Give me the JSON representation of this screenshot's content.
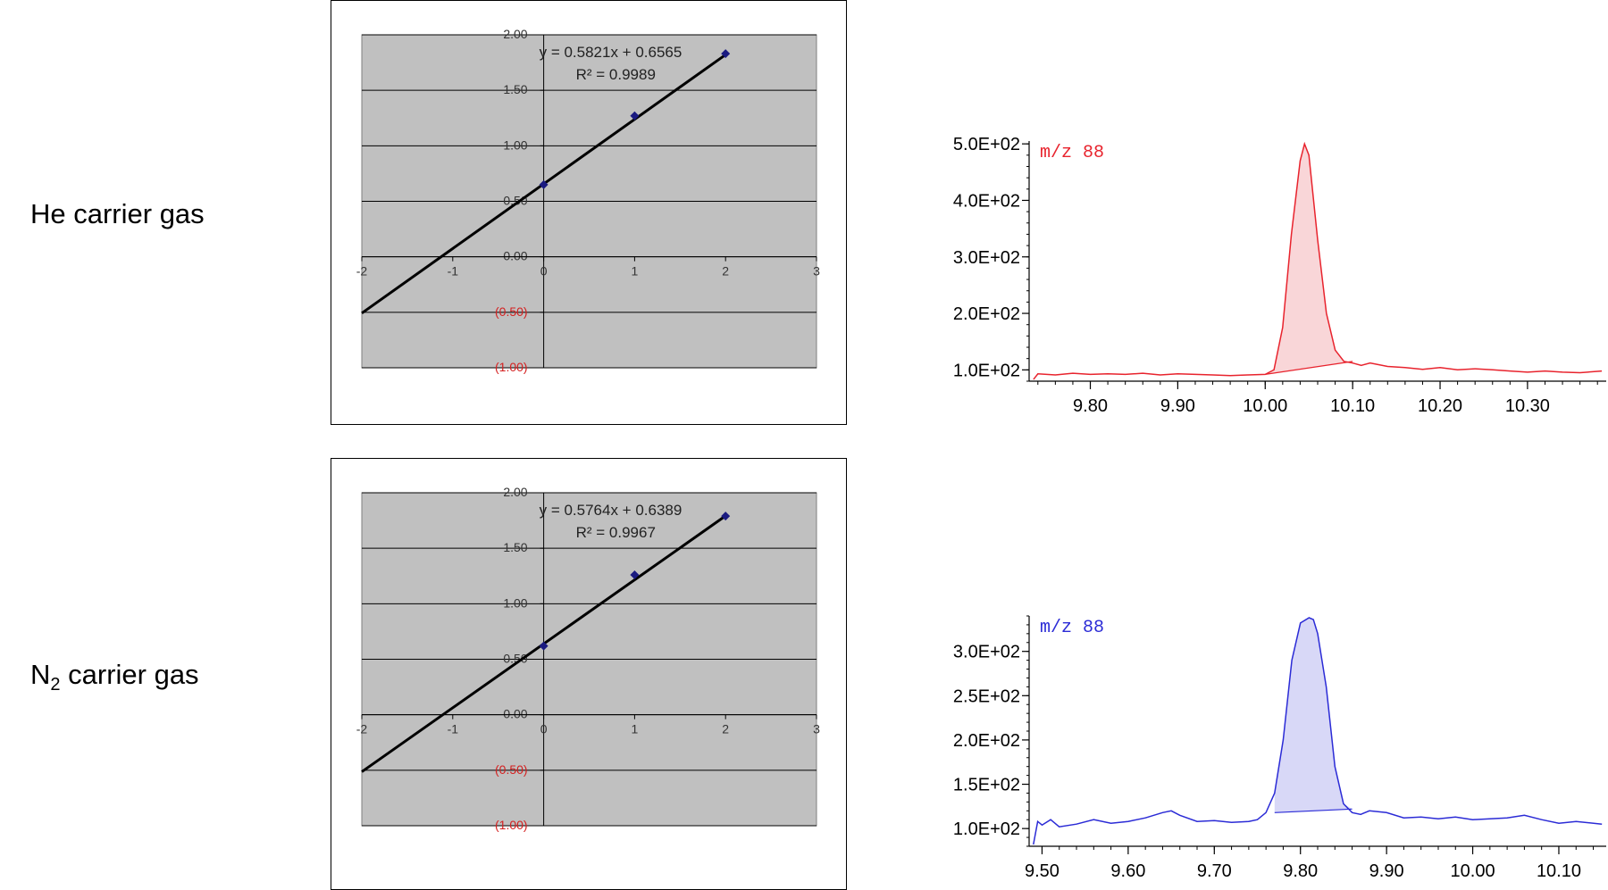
{
  "row_labels": [
    {
      "prefix": "He carrier gas",
      "sub": "",
      "suffix": ""
    },
    {
      "prefix": "N",
      "sub": "2",
      "suffix": " carrier gas"
    }
  ],
  "chart_data": [
    {
      "type": "scatter",
      "title": "",
      "xlim": [
        -2,
        3
      ],
      "ylim": [
        -1.0,
        2.0
      ],
      "xticks": [
        -2,
        -1,
        0,
        1,
        2,
        3
      ],
      "yticks": [
        2.0,
        1.5,
        1.0,
        0.5,
        0.0,
        -0.5,
        -1.0
      ],
      "ytick_labels": [
        "2.00",
        "1.50",
        "1.00",
        "0.50",
        "0.00",
        "(0.50)",
        "(1.00)"
      ],
      "grid": true,
      "points": {
        "x": [
          0,
          1,
          2
        ],
        "y": [
          0.65,
          1.27,
          1.83
        ]
      },
      "trendline": {
        "slope": 0.5821,
        "intercept": 0.6565,
        "x_range": [
          -2,
          2
        ]
      },
      "equation": "y = 0.5821x + 0.6565",
      "r2": "R² = 0.9989"
    },
    {
      "type": "line",
      "title": "",
      "label": "m/z 88",
      "color": "#e8232d",
      "fill": "#f9d6d8",
      "xlim": [
        9.73,
        10.39
      ],
      "ylim": [
        80,
        505
      ],
      "xticks": [
        9.8,
        9.9,
        10.0,
        10.1,
        10.2,
        10.3
      ],
      "xtick_labels": [
        "9.80",
        "9.90",
        "10.00",
        "10.10",
        "10.20",
        "10.30"
      ],
      "yticks": [
        100,
        200,
        300,
        400,
        500
      ],
      "ytick_labels": [
        "1.0E+02",
        "2.0E+02",
        "3.0E+02",
        "4.0E+02",
        "5.0E+02"
      ],
      "x": [
        9.735,
        9.74,
        9.76,
        9.78,
        9.8,
        9.82,
        9.84,
        9.86,
        9.88,
        9.9,
        9.92,
        9.94,
        9.96,
        9.98,
        10.0,
        10.01,
        10.02,
        10.03,
        10.04,
        10.045,
        10.05,
        10.06,
        10.07,
        10.08,
        10.09,
        10.1,
        10.11,
        10.12,
        10.14,
        10.16,
        10.18,
        10.2,
        10.22,
        10.24,
        10.26,
        10.28,
        10.3,
        10.32,
        10.34,
        10.36,
        10.385
      ],
      "y": [
        83,
        93,
        91,
        94,
        92,
        93,
        92,
        94,
        91,
        93,
        92,
        91,
        90,
        91,
        92,
        100,
        175,
        340,
        470,
        500,
        480,
        330,
        200,
        135,
        115,
        112,
        108,
        112,
        106,
        104,
        101,
        104,
        100,
        102,
        100,
        98,
        96,
        98,
        96,
        95,
        98
      ],
      "peak_baseline": {
        "x": [
          10.0,
          10.1
        ],
        "y": [
          92,
          115
        ]
      }
    },
    {
      "type": "scatter",
      "title": "",
      "xlim": [
        -2,
        3
      ],
      "ylim": [
        -1.0,
        2.0
      ],
      "xticks": [
        -2,
        -1,
        0,
        1,
        2,
        3
      ],
      "yticks": [
        2.0,
        1.5,
        1.0,
        0.5,
        0.0,
        -0.5,
        -1.0
      ],
      "ytick_labels": [
        "2.00",
        "1.50",
        "1.00",
        "0.50",
        "0.00",
        "(0.50)",
        "(1.00)"
      ],
      "grid": true,
      "points": {
        "x": [
          0,
          1,
          2
        ],
        "y": [
          0.62,
          1.26,
          1.79
        ]
      },
      "trendline": {
        "slope": 0.5764,
        "intercept": 0.6389,
        "x_range": [
          -2,
          2
        ]
      },
      "equation": "y = 0.5764x + 0.6389",
      "r2": "R² = 0.9967"
    },
    {
      "type": "line",
      "title": "",
      "label": "m/z 88",
      "color": "#2b2bd6",
      "fill": "#d8d8f7",
      "xlim": [
        9.485,
        10.155
      ],
      "ylim": [
        80,
        340
      ],
      "xticks": [
        9.5,
        9.6,
        9.7,
        9.8,
        9.9,
        10.0,
        10.1
      ],
      "xtick_labels": [
        "9.50",
        "9.60",
        "9.70",
        "9.80",
        "9.90",
        "10.00",
        "10.10"
      ],
      "yticks": [
        100,
        150,
        200,
        250,
        300
      ],
      "ytick_labels": [
        "1.0E+02",
        "1.5E+02",
        "2.0E+02",
        "2.5E+02",
        "3.0E+02"
      ],
      "x": [
        9.49,
        9.495,
        9.5,
        9.51,
        9.52,
        9.54,
        9.56,
        9.58,
        9.6,
        9.62,
        9.64,
        9.65,
        9.66,
        9.68,
        9.7,
        9.72,
        9.74,
        9.75,
        9.76,
        9.77,
        9.78,
        9.79,
        9.8,
        9.81,
        9.815,
        9.82,
        9.83,
        9.84,
        9.85,
        9.86,
        9.87,
        9.88,
        9.9,
        9.92,
        9.94,
        9.96,
        9.98,
        10.0,
        10.02,
        10.04,
        10.06,
        10.08,
        10.1,
        10.12,
        10.15
      ],
      "y": [
        82,
        108,
        104,
        110,
        102,
        105,
        110,
        106,
        108,
        112,
        118,
        120,
        115,
        108,
        109,
        107,
        108,
        110,
        118,
        140,
        200,
        290,
        332,
        338,
        336,
        320,
        260,
        170,
        128,
        118,
        116,
        120,
        118,
        112,
        113,
        111,
        113,
        110,
        111,
        112,
        115,
        110,
        106,
        108,
        105
      ],
      "peak_baseline": {
        "x": [
          9.77,
          9.86
        ],
        "y": [
          118,
          122
        ]
      }
    }
  ]
}
